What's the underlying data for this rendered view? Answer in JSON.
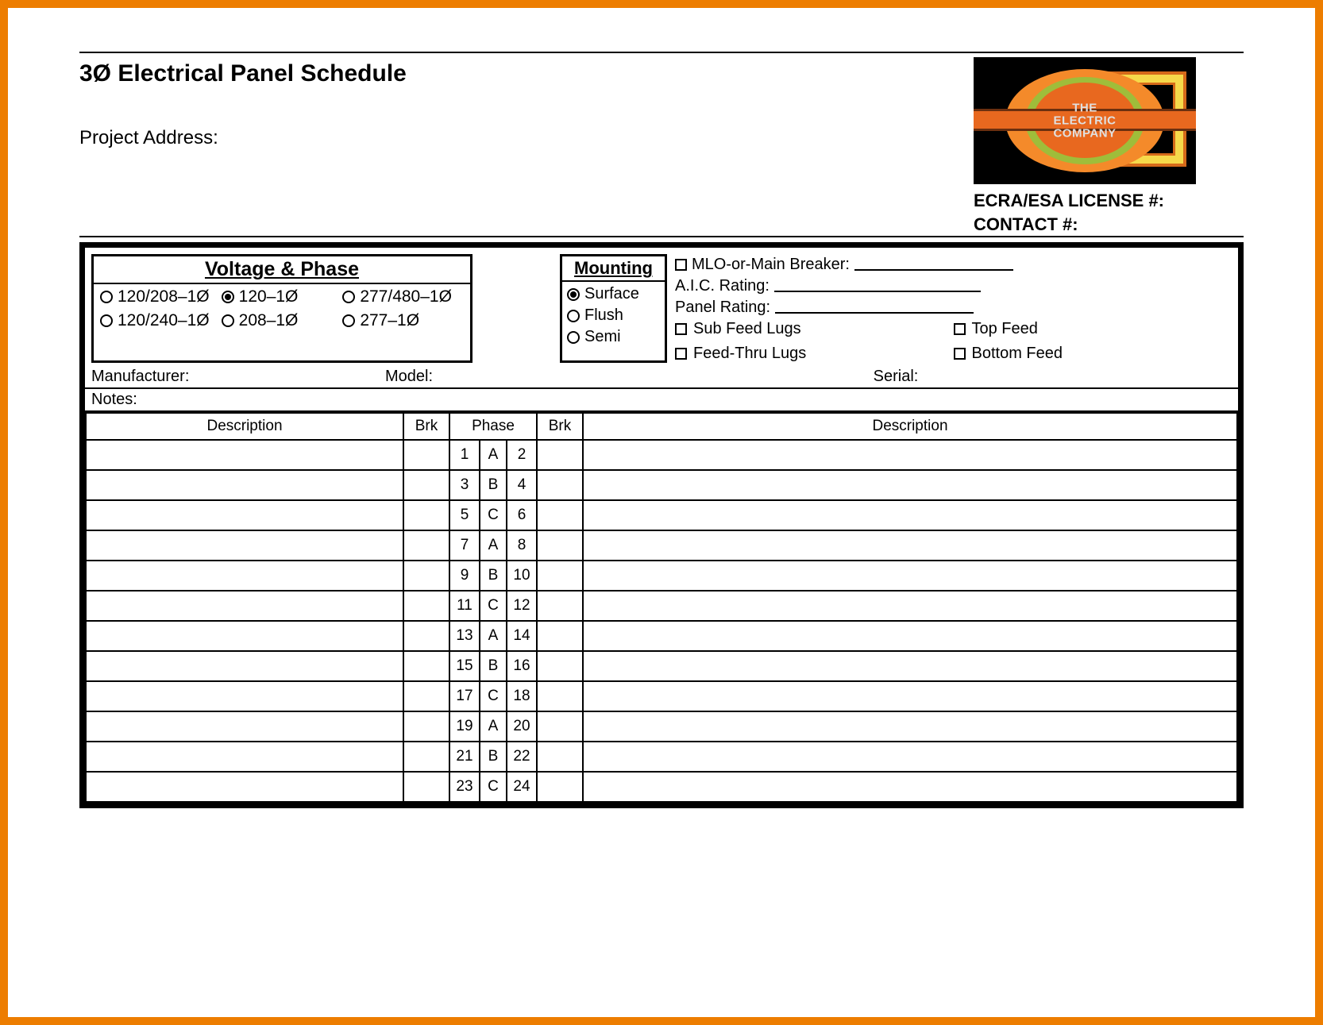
{
  "colors": {
    "border": "#ed7d00",
    "black": "#000000",
    "white": "#ffffff",
    "logo_bg": "#000000",
    "logo_orange": "#e8681f",
    "logo_green": "#9fbd3a",
    "logo_yellow": "#f6d94a"
  },
  "header": {
    "title": "3Ø Electrical Panel Schedule",
    "project_address_label": "Project Address:",
    "logo_text_line1": "THE",
    "logo_text_line2": "ELECTRIC",
    "logo_text_line3": "COMPANY",
    "license_label": "ECRA/ESA LICENSE #:",
    "contact_label": "CONTACT #:"
  },
  "voltage_phase": {
    "title": "Voltage & Phase",
    "options": [
      {
        "label": "120/208–1Ø",
        "selected": false
      },
      {
        "label": "120–1Ø",
        "selected": true
      },
      {
        "label": "277/480–1Ø",
        "selected": false
      },
      {
        "label": "120/240–1Ø",
        "selected": false
      },
      {
        "label": "208–1Ø",
        "selected": false
      },
      {
        "label": "277–1Ø",
        "selected": false
      }
    ]
  },
  "mounting": {
    "title": "Mounting",
    "options": [
      {
        "label": "Surface",
        "selected": true
      },
      {
        "label": "Flush",
        "selected": false
      },
      {
        "label": "Semi",
        "selected": false
      }
    ]
  },
  "ratings": {
    "mlo_label": "MLO-or-Main Breaker:",
    "aic_label": "A.I.C. Rating:",
    "panel_label": "Panel Rating:",
    "checkboxes": [
      {
        "label": "Sub Feed Lugs",
        "checked": false
      },
      {
        "label": "Top Feed",
        "checked": false
      },
      {
        "label": "Feed-Thru Lugs",
        "checked": false
      },
      {
        "label": "Bottom Feed",
        "checked": false
      }
    ]
  },
  "meta": {
    "manufacturer_label": "Manufacturer:",
    "model_label": "Model:",
    "serial_label": "Serial:",
    "notes_label": "Notes:"
  },
  "table": {
    "columns": {
      "desc": "Description",
      "brk": "Brk",
      "phase": "Phase"
    },
    "rows": [
      {
        "l": 1,
        "ph": "A",
        "r": 2
      },
      {
        "l": 3,
        "ph": "B",
        "r": 4
      },
      {
        "l": 5,
        "ph": "C",
        "r": 6
      },
      {
        "l": 7,
        "ph": "A",
        "r": 8
      },
      {
        "l": 9,
        "ph": "B",
        "r": 10
      },
      {
        "l": 11,
        "ph": "C",
        "r": 12
      },
      {
        "l": 13,
        "ph": "A",
        "r": 14
      },
      {
        "l": 15,
        "ph": "B",
        "r": 16
      },
      {
        "l": 17,
        "ph": "C",
        "r": 18
      },
      {
        "l": 19,
        "ph": "A",
        "r": 20
      },
      {
        "l": 21,
        "ph": "B",
        "r": 22
      },
      {
        "l": 23,
        "ph": "C",
        "r": 24
      }
    ]
  }
}
